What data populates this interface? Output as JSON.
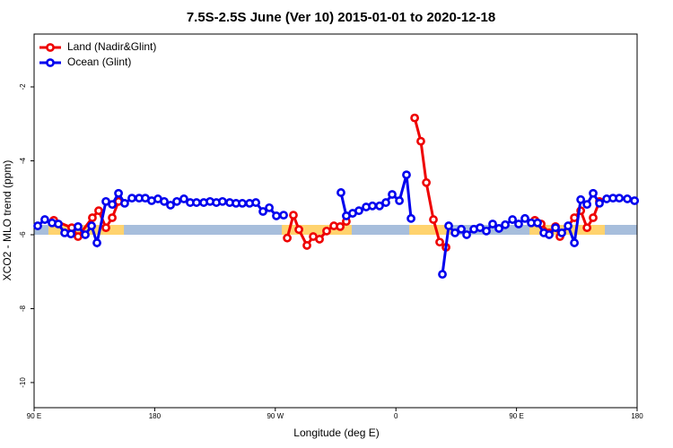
{
  "chart_data": {
    "type": "line",
    "title": "7.5S-2.5S June (Ver 10)   2015-01-01 to 2020-12-18",
    "x_label": "Longitude (deg E)",
    "y_label": "XCO2 - MLO trend (ppm)",
    "xlim": [
      90,
      540
    ],
    "ylim": [
      -10.68,
      -0.57
    ],
    "xticks": [
      {
        "value": 90,
        "label": "90 E"
      },
      180,
      {
        "value": 270,
        "label": "90 W"
      },
      {
        "value": 360,
        "label": "0"
      },
      {
        "value": 450,
        "label": "90 E"
      },
      {
        "value": 540,
        "label": "180"
      }
    ],
    "yticks": [
      -2,
      -4,
      -6,
      -8,
      -10
    ],
    "legend": "top-left",
    "band_colors": {
      "land": "#ffd36e",
      "ocean": "#a7bedc"
    },
    "series": [
      {
        "name": "Land (Nadir&Glint)",
        "color": "#ee0000",
        "x": [
          104.7,
          118.1,
          122.8,
          133.5,
          138.2,
          143.6,
          148.3,
          153.0,
          215.9,
          278.9,
          283.5,
          287.6,
          293.6,
          298.3,
          303.0,
          308.3,
          313.7,
          318.4,
          323.0,
          348.5,
          374.0,
          378.6,
          382.7,
          388.0,
          392.7,
          397.4,
          430.2,
          463.7,
          468.4,
          474.4,
          479.1,
          482.4,
          493.2,
          497.9,
          502.6,
          507.2,
          511.9
        ],
        "values": [
          -5.61,
          -5.81,
          -6.05,
          -5.54,
          -5.35,
          -5.81,
          -5.54,
          -5.1,
          null,
          -6.09,
          -5.47,
          -5.86,
          -6.29,
          -6.05,
          -6.12,
          -5.9,
          -5.76,
          -5.78,
          -5.64,
          null,
          -2.84,
          -3.47,
          -4.59,
          -5.59,
          -6.2,
          -6.34,
          null,
          -5.61,
          -5.71,
          -5.95,
          -5.78,
          -6.05,
          -5.54,
          -5.35,
          -5.81,
          -5.54,
          -5.1
        ]
      },
      {
        "name": "Ocean (Glint)",
        "color": "#0000ee",
        "x": [
          92.7,
          98.0,
          103.4,
          108.1,
          112.8,
          117.5,
          122.8,
          128.2,
          132.9,
          136.9,
          143.6,
          148.3,
          153.0,
          157.6,
          163.0,
          168.4,
          173.0,
          177.7,
          182.4,
          187.1,
          191.8,
          196.5,
          201.8,
          206.5,
          211.2,
          216.6,
          221.3,
          226.0,
          230.6,
          236.0,
          240.7,
          245.4,
          250.8,
          255.5,
          260.8,
          265.5,
          270.8,
          276.2,
          297.6,
          319.0,
          323.0,
          327.7,
          332.4,
          337.8,
          342.5,
          347.8,
          352.5,
          357.2,
          362.6,
          367.9,
          371.3,
          382.7,
          394.7,
          399.4,
          404.1,
          408.8,
          412.8,
          418.2,
          422.8,
          427.5,
          432.2,
          436.9,
          441.6,
          447.0,
          451.6,
          456.3,
          461.0,
          465.7,
          470.4,
          474.4,
          479.1,
          483.8,
          488.5,
          493.2,
          497.9,
          502.6,
          507.2,
          511.9,
          517.3,
          522.0,
          526.7,
          532.7,
          538.1
        ],
        "values": [
          -5.76,
          -5.59,
          -5.68,
          -5.71,
          -5.95,
          -5.98,
          -5.78,
          -6.0,
          -5.76,
          -6.22,
          -5.1,
          -5.18,
          -4.88,
          -5.15,
          -5.01,
          -5.01,
          -5.01,
          -5.08,
          -5.03,
          -5.1,
          -5.2,
          -5.1,
          -5.03,
          -5.13,
          -5.13,
          -5.13,
          -5.1,
          -5.13,
          -5.1,
          -5.13,
          -5.15,
          -5.15,
          -5.15,
          -5.13,
          -5.37,
          -5.27,
          -5.49,
          -5.47,
          null,
          -4.86,
          -5.49,
          -5.42,
          -5.35,
          -5.25,
          -5.22,
          -5.22,
          -5.13,
          -4.91,
          -5.08,
          -4.38,
          -5.56,
          null,
          -7.07,
          -5.76,
          -5.95,
          -5.85,
          -6.0,
          -5.85,
          -5.81,
          -5.9,
          -5.71,
          -5.83,
          -5.73,
          -5.59,
          -5.71,
          -5.56,
          -5.68,
          -5.68,
          -5.95,
          -6.0,
          -5.81,
          -5.95,
          -5.76,
          -6.22,
          -5.05,
          -5.18,
          -4.88,
          -5.15,
          -5.03,
          -5.01,
          -5.01,
          -5.03,
          -5.08
        ]
      }
    ]
  }
}
